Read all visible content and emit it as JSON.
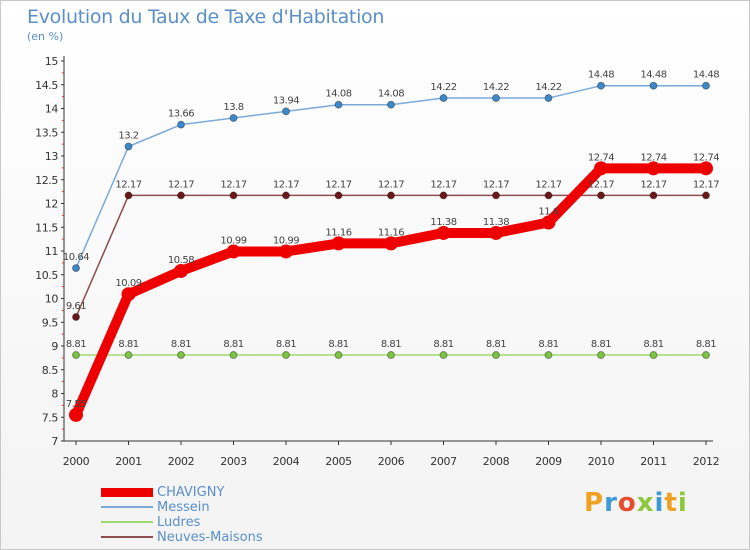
{
  "header": {
    "title": "Evolution du Taux de Taxe d'Habitation",
    "subtitle": "(en %)"
  },
  "brand": {
    "letters": [
      "P",
      "r",
      "o",
      "x",
      "i",
      "t",
      "i"
    ],
    "colors": [
      "#f0a020",
      "#3c9ad6",
      "#e84c2c",
      "#8cc83c",
      "#3c9ad6",
      "#f0a020",
      "#8cc83c"
    ]
  },
  "chart_data": {
    "type": "line",
    "title": "Evolution du Taux de Taxe d'Habitation",
    "subtitle": "(en %)",
    "xlabel": "",
    "ylabel": "",
    "x": [
      "2000",
      "2001",
      "2002",
      "2003",
      "2004",
      "2005",
      "2006",
      "2007",
      "2008",
      "2009",
      "2010",
      "2011",
      "2012"
    ],
    "ylim": [
      7,
      15
    ],
    "yticks": [
      7,
      7.5,
      8,
      8.5,
      9,
      9.5,
      10,
      10.5,
      11,
      11.5,
      12,
      12.5,
      13,
      13.5,
      14,
      14.5,
      15
    ],
    "ytick_labels": [
      "7",
      "7.5",
      "8",
      "8.5",
      "9",
      "9.5",
      "10",
      "10.5",
      "11",
      "11.5",
      "12",
      "12.5",
      "13",
      "13.5",
      "14",
      "14.5",
      "15"
    ],
    "grid": false,
    "legend_position": "bottom-left",
    "series": [
      {
        "name": "CHAVIGNY",
        "color": "#ee0000",
        "marker_color": "#ee0000",
        "emphasis": true,
        "values": [
          7.55,
          10.09,
          10.58,
          10.99,
          10.99,
          11.16,
          11.16,
          11.38,
          11.38,
          11.6,
          12.74,
          12.74,
          12.74
        ],
        "labels": [
          "7.55",
          "10.09",
          "10.58",
          "10.99",
          "10.99",
          "11.16",
          "11.16",
          "11.38",
          "11.38",
          "11.6",
          "12.74",
          "12.74",
          "12.74"
        ]
      },
      {
        "name": "Messein",
        "color": "#7aaad8",
        "marker_color": "#3c88c8",
        "emphasis": false,
        "values": [
          10.64,
          13.2,
          13.66,
          13.8,
          13.94,
          14.08,
          14.08,
          14.22,
          14.22,
          14.22,
          14.48,
          14.48,
          14.48
        ],
        "labels": [
          "10.64",
          "13.2",
          "13.66",
          "13.8",
          "13.94",
          "14.08",
          "14.08",
          "14.22",
          "14.22",
          "14.22",
          "14.48",
          "14.48",
          "14.48"
        ]
      },
      {
        "name": "Ludres",
        "color": "#a0d870",
        "marker_color": "#7cc444",
        "emphasis": false,
        "values": [
          8.81,
          8.81,
          8.81,
          8.81,
          8.81,
          8.81,
          8.81,
          8.81,
          8.81,
          8.81,
          8.81,
          8.81,
          8.81
        ],
        "labels": [
          "8.81",
          "8.81",
          "8.81",
          "8.81",
          "8.81",
          "8.81",
          "8.81",
          "8.81",
          "8.81",
          "8.81",
          "8.81",
          "8.81",
          "8.81"
        ]
      },
      {
        "name": "Neuves-Maisons",
        "color": "#8c4c4c",
        "marker_color": "#6a1818",
        "emphasis": false,
        "values": [
          9.61,
          12.17,
          12.17,
          12.17,
          12.17,
          12.17,
          12.17,
          12.17,
          12.17,
          12.17,
          12.17,
          12.17,
          12.17
        ],
        "labels": [
          "9.61",
          "12.17",
          "12.17",
          "12.17",
          "12.17",
          "12.17",
          "12.17",
          "12.17",
          "12.17",
          "12.17",
          "12.17",
          "12.17",
          "12.17"
        ]
      }
    ]
  }
}
